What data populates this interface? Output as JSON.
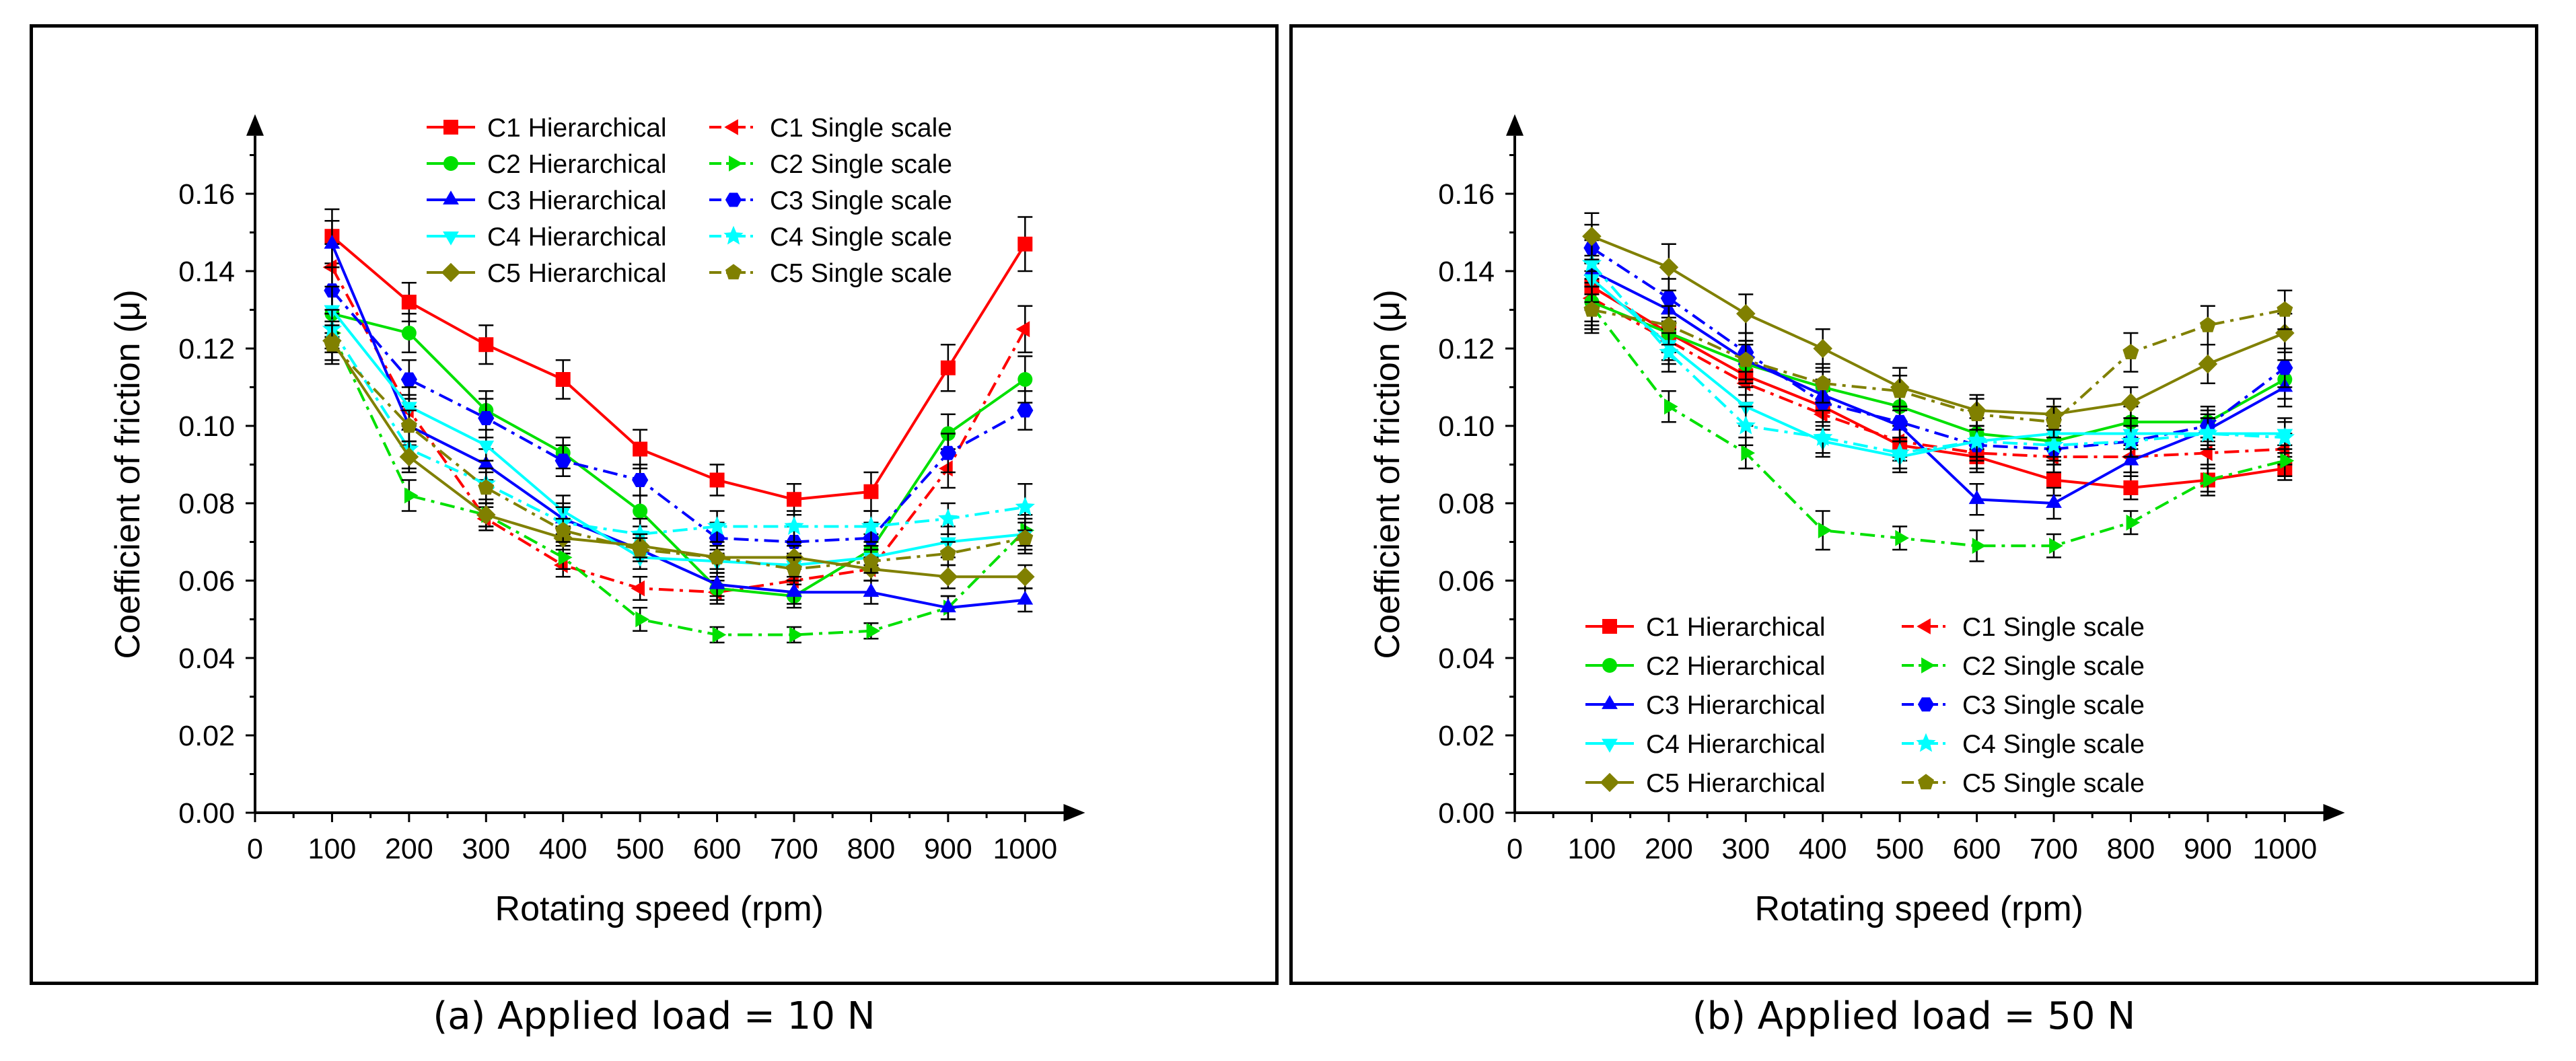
{
  "captions": {
    "a": "(a) Applied load = 10 N",
    "b": "(b) Applied load = 50 N"
  },
  "series_styles": [
    {
      "name": "C1",
      "color": "#ff0000",
      "marker_h": "square",
      "marker_s": "triangle-left"
    },
    {
      "name": "C2",
      "color": "#00e000",
      "marker_h": "circle",
      "marker_s": "triangle-right"
    },
    {
      "name": "C3",
      "color": "#0000ff",
      "marker_h": "triangle-up",
      "marker_s": "hexagon"
    },
    {
      "name": "C4",
      "color": "#00ffff",
      "marker_h": "triangle-down",
      "marker_s": "star"
    },
    {
      "name": "C5",
      "color": "#808000",
      "marker_h": "diamond",
      "marker_s": "pentagon"
    }
  ],
  "chart_data": [
    {
      "type": "line",
      "title": "",
      "xlabel": "Rotating speed (rpm)",
      "ylabel": "Coefficient of friction (μ)",
      "xlim": [
        0,
        1050
      ],
      "ylim": [
        0,
        0.175
      ],
      "xticks": [
        "0",
        "100",
        "200",
        "300",
        "400",
        "500",
        "600",
        "700",
        "800",
        "900",
        "1000"
      ],
      "yticks": [
        "0.00",
        "0.02",
        "0.04",
        "0.06",
        "0.08",
        "0.10",
        "0.12",
        "0.14",
        "0.16"
      ],
      "legend_position": "top-center",
      "x": [
        100,
        200,
        300,
        400,
        500,
        600,
        700,
        800,
        900,
        1000
      ],
      "series": [
        {
          "name": "C1 Hierarchical",
          "values": [
            0.149,
            0.132,
            0.121,
            0.112,
            0.094,
            0.086,
            0.081,
            0.083,
            0.115,
            0.147
          ],
          "errors": [
            0.007,
            0.005,
            0.005,
            0.005,
            0.005,
            0.004,
            0.004,
            0.005,
            0.006,
            0.007
          ]
        },
        {
          "name": "C1 Single scale",
          "values": [
            0.141,
            0.104,
            0.076,
            0.064,
            0.058,
            0.057,
            0.06,
            0.063,
            0.089,
            0.125
          ],
          "errors": [
            0.006,
            0.004,
            0.003,
            0.003,
            0.003,
            0.003,
            0.003,
            0.003,
            0.005,
            0.006
          ]
        },
        {
          "name": "C2 Hierarchical",
          "values": [
            0.129,
            0.124,
            0.104,
            0.093,
            0.078,
            0.058,
            0.056,
            0.068,
            0.098,
            0.112
          ],
          "errors": [
            0.006,
            0.005,
            0.005,
            0.004,
            0.004,
            0.003,
            0.003,
            0.004,
            0.005,
            0.006
          ]
        },
        {
          "name": "C2 Single scale",
          "values": [
            0.124,
            0.082,
            0.077,
            0.066,
            0.05,
            0.046,
            0.046,
            0.047,
            0.053,
            0.073
          ],
          "errors": [
            0.005,
            0.004,
            0.003,
            0.003,
            0.003,
            0.002,
            0.002,
            0.002,
            0.003,
            0.004
          ]
        },
        {
          "name": "C3 Hierarchical",
          "values": [
            0.147,
            0.1,
            0.09,
            0.076,
            0.068,
            0.059,
            0.057,
            0.057,
            0.053,
            0.055
          ],
          "errors": [
            0.006,
            0.005,
            0.004,
            0.004,
            0.003,
            0.003,
            0.003,
            0.003,
            0.003,
            0.003
          ]
        },
        {
          "name": "C3 Single scale",
          "values": [
            0.135,
            0.112,
            0.102,
            0.091,
            0.086,
            0.071,
            0.07,
            0.071,
            0.093,
            0.104
          ],
          "errors": [
            0.006,
            0.005,
            0.005,
            0.004,
            0.004,
            0.004,
            0.004,
            0.004,
            0.005,
            0.005
          ]
        },
        {
          "name": "C4 Hierarchical",
          "values": [
            0.13,
            0.105,
            0.095,
            0.078,
            0.066,
            0.065,
            0.064,
            0.066,
            0.07,
            0.072
          ],
          "errors": [
            0.006,
            0.005,
            0.004,
            0.004,
            0.003,
            0.003,
            0.003,
            0.003,
            0.004,
            0.004
          ]
        },
        {
          "name": "C4 Single scale",
          "values": [
            0.125,
            0.094,
            0.085,
            0.075,
            0.072,
            0.074,
            0.074,
            0.074,
            0.076,
            0.079
          ],
          "errors": [
            0.005,
            0.005,
            0.004,
            0.004,
            0.004,
            0.004,
            0.004,
            0.004,
            0.004,
            0.006
          ]
        },
        {
          "name": "C5 Hierarchical",
          "values": [
            0.122,
            0.092,
            0.077,
            0.071,
            0.069,
            0.066,
            0.066,
            0.063,
            0.061,
            0.061
          ],
          "errors": [
            0.005,
            0.004,
            0.003,
            0.003,
            0.003,
            0.003,
            0.003,
            0.003,
            0.003,
            0.003
          ]
        },
        {
          "name": "C5 Single scale",
          "values": [
            0.121,
            0.1,
            0.084,
            0.073,
            0.068,
            0.066,
            0.063,
            0.065,
            0.067,
            0.071
          ],
          "errors": [
            0.005,
            0.004,
            0.004,
            0.003,
            0.003,
            0.003,
            0.003,
            0.003,
            0.003,
            0.004
          ]
        }
      ]
    },
    {
      "type": "line",
      "title": "",
      "xlabel": "Rotating speed (rpm)",
      "ylabel": "Coefficient of friction (μ)",
      "xlim": [
        0,
        1050
      ],
      "ylim": [
        0,
        0.175
      ],
      "xticks": [
        "0",
        "100",
        "200",
        "300",
        "400",
        "500",
        "600",
        "700",
        "800",
        "900",
        "1000"
      ],
      "yticks": [
        "0.00",
        "0.02",
        "0.04",
        "0.06",
        "0.08",
        "0.10",
        "0.12",
        "0.14",
        "0.16"
      ],
      "legend_position": "bottom-center",
      "x": [
        100,
        200,
        300,
        400,
        500,
        600,
        700,
        800,
        900,
        1000
      ],
      "series": [
        {
          "name": "C1 Hierarchical",
          "values": [
            0.136,
            0.124,
            0.113,
            0.105,
            0.095,
            0.092,
            0.086,
            0.084,
            0.086,
            0.089
          ],
          "errors": [
            0.006,
            0.005,
            0.005,
            0.004,
            0.004,
            0.004,
            0.004,
            0.003,
            0.003,
            0.003
          ]
        },
        {
          "name": "C1 Single scale",
          "values": [
            0.133,
            0.122,
            0.111,
            0.103,
            0.096,
            0.093,
            0.092,
            0.092,
            0.093,
            0.094
          ],
          "errors": [
            0.006,
            0.005,
            0.005,
            0.004,
            0.004,
            0.004,
            0.004,
            0.004,
            0.004,
            0.004
          ]
        },
        {
          "name": "C2 Hierarchical",
          "values": [
            0.132,
            0.124,
            0.116,
            0.11,
            0.105,
            0.098,
            0.096,
            0.101,
            0.101,
            0.112
          ],
          "errors": [
            0.006,
            0.005,
            0.005,
            0.004,
            0.004,
            0.004,
            0.004,
            0.004,
            0.004,
            0.005
          ]
        },
        {
          "name": "C2 Single scale",
          "values": [
            0.131,
            0.105,
            0.093,
            0.073,
            0.071,
            0.069,
            0.069,
            0.075,
            0.086,
            0.091
          ],
          "errors": [
            0.006,
            0.004,
            0.004,
            0.005,
            0.003,
            0.004,
            0.003,
            0.003,
            0.004,
            0.004
          ]
        },
        {
          "name": "C3 Hierarchical",
          "values": [
            0.14,
            0.13,
            0.117,
            0.108,
            0.1,
            0.081,
            0.08,
            0.091,
            0.099,
            0.11
          ],
          "errors": [
            0.006,
            0.005,
            0.005,
            0.004,
            0.004,
            0.004,
            0.004,
            0.004,
            0.004,
            0.005
          ]
        },
        {
          "name": "C3 Single scale",
          "values": [
            0.146,
            0.133,
            0.119,
            0.106,
            0.101,
            0.095,
            0.094,
            0.096,
            0.1,
            0.115
          ],
          "errors": [
            0.006,
            0.005,
            0.005,
            0.005,
            0.004,
            0.004,
            0.004,
            0.004,
            0.004,
            0.005
          ]
        },
        {
          "name": "C4 Hierarchical",
          "values": [
            0.138,
            0.121,
            0.105,
            0.096,
            0.092,
            0.096,
            0.098,
            0.098,
            0.098,
            0.098
          ],
          "errors": [
            0.006,
            0.005,
            0.005,
            0.004,
            0.004,
            0.004,
            0.004,
            0.004,
            0.004,
            0.004
          ]
        },
        {
          "name": "C4 Single scale",
          "values": [
            0.142,
            0.119,
            0.1,
            0.097,
            0.093,
            0.096,
            0.095,
            0.096,
            0.098,
            0.097
          ],
          "errors": [
            0.006,
            0.005,
            0.005,
            0.004,
            0.004,
            0.004,
            0.004,
            0.004,
            0.004,
            0.004
          ]
        },
        {
          "name": "C5 Hierarchical",
          "values": [
            0.149,
            0.141,
            0.129,
            0.12,
            0.11,
            0.104,
            0.103,
            0.106,
            0.116,
            0.124
          ],
          "errors": [
            0.006,
            0.006,
            0.005,
            0.005,
            0.005,
            0.004,
            0.004,
            0.004,
            0.005,
            0.005
          ]
        },
        {
          "name": "C5 Single scale",
          "values": [
            0.13,
            0.126,
            0.117,
            0.111,
            0.109,
            0.103,
            0.101,
            0.119,
            0.126,
            0.13
          ],
          "errors": [
            0.006,
            0.005,
            0.005,
            0.005,
            0.004,
            0.004,
            0.004,
            0.005,
            0.005,
            0.005
          ]
        }
      ]
    }
  ]
}
